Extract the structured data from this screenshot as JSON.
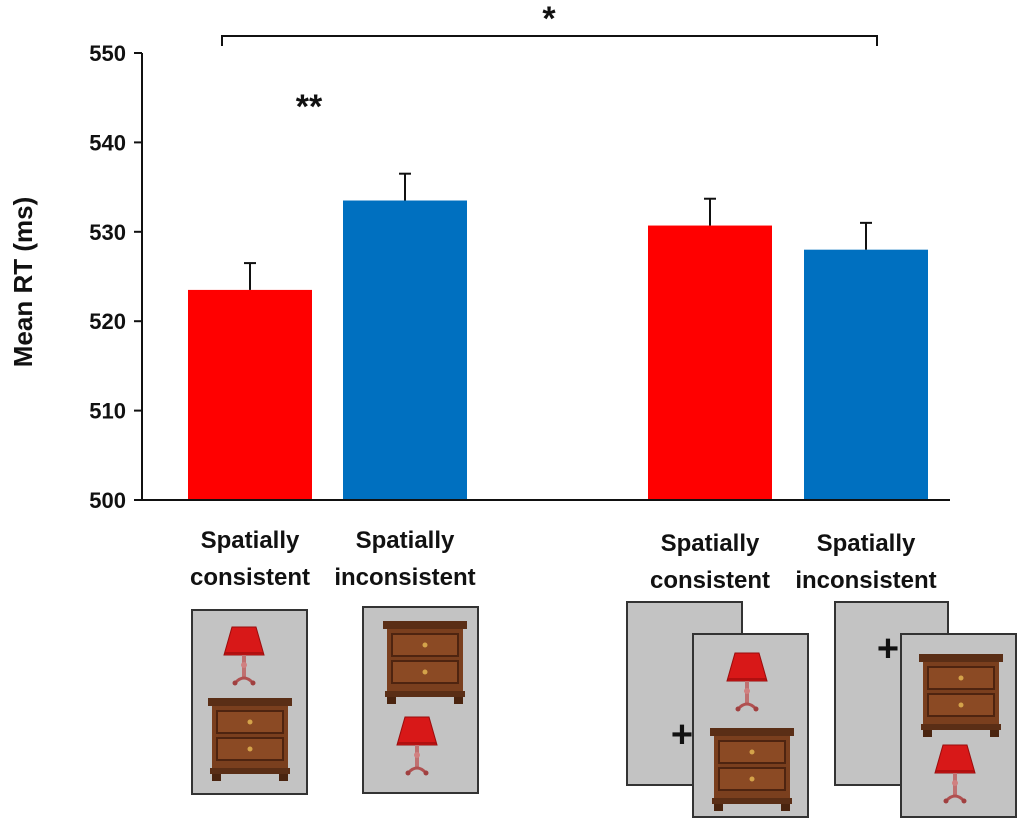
{
  "chart_data": {
    "type": "bar",
    "title": "",
    "xlabel": "",
    "ylabel": "Mean RT (ms)",
    "ylim": [
      500,
      550
    ],
    "yticks": [
      500,
      510,
      520,
      530,
      540,
      550
    ],
    "grid": false,
    "groups": [
      {
        "bars": [
          {
            "label_line1": "Spatially",
            "label_line2": "consistent",
            "value": 523.5,
            "error": 3.0,
            "color": "#ff0000"
          },
          {
            "label_line1": "Spatially",
            "label_line2": "inconsistent",
            "value": 533.5,
            "error": 3.0,
            "color": "#0070c0"
          }
        ]
      },
      {
        "bars": [
          {
            "label_line1": "Spatially",
            "label_line2": "consistent",
            "value": 530.7,
            "error": 3.0,
            "color": "#ff0000"
          },
          {
            "label_line1": "Spatially",
            "label_line2": "inconsistent",
            "value": 528.0,
            "error": 3.0,
            "color": "#0070c0"
          }
        ]
      }
    ],
    "annotations": {
      "within_group1": "**",
      "across_groups": "*"
    },
    "stimulus_icons": [
      "lamp-icon",
      "nightstand-icon",
      "fixation-cross-icon"
    ],
    "fixation_symbol": "+"
  }
}
